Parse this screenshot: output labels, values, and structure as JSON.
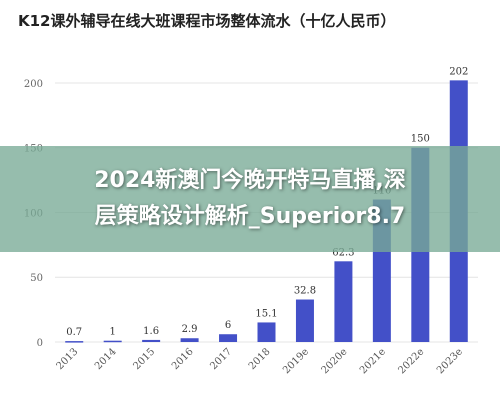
{
  "chart_data": {
    "type": "bar",
    "title": "K12课外辅导在线大班课程市场整体流水（十亿人民币）",
    "categories": [
      "2013",
      "2014",
      "2015",
      "2016",
      "2017",
      "2018",
      "2019e",
      "2020e",
      "2021e",
      "2022e",
      "2023e"
    ],
    "values": [
      0.7,
      1,
      1.6,
      2.9,
      6,
      15.1,
      32.8,
      62.3,
      110,
      150,
      202
    ],
    "value_labels": [
      "0.7",
      "1",
      "1.6",
      "2.9",
      "6",
      "15.1",
      "32.8",
      "62.3",
      "110",
      "150",
      "202"
    ],
    "yticks": [
      0,
      50,
      100,
      150,
      200
    ],
    "ylim": [
      0,
      210
    ],
    "xlabel": "",
    "ylabel": "",
    "bar_color": "#4350c8",
    "grid": true
  },
  "overlay": {
    "line1": "2024新澳门今晚开特马直播,深",
    "line2": "层策略设计解析_Superior8.7"
  }
}
